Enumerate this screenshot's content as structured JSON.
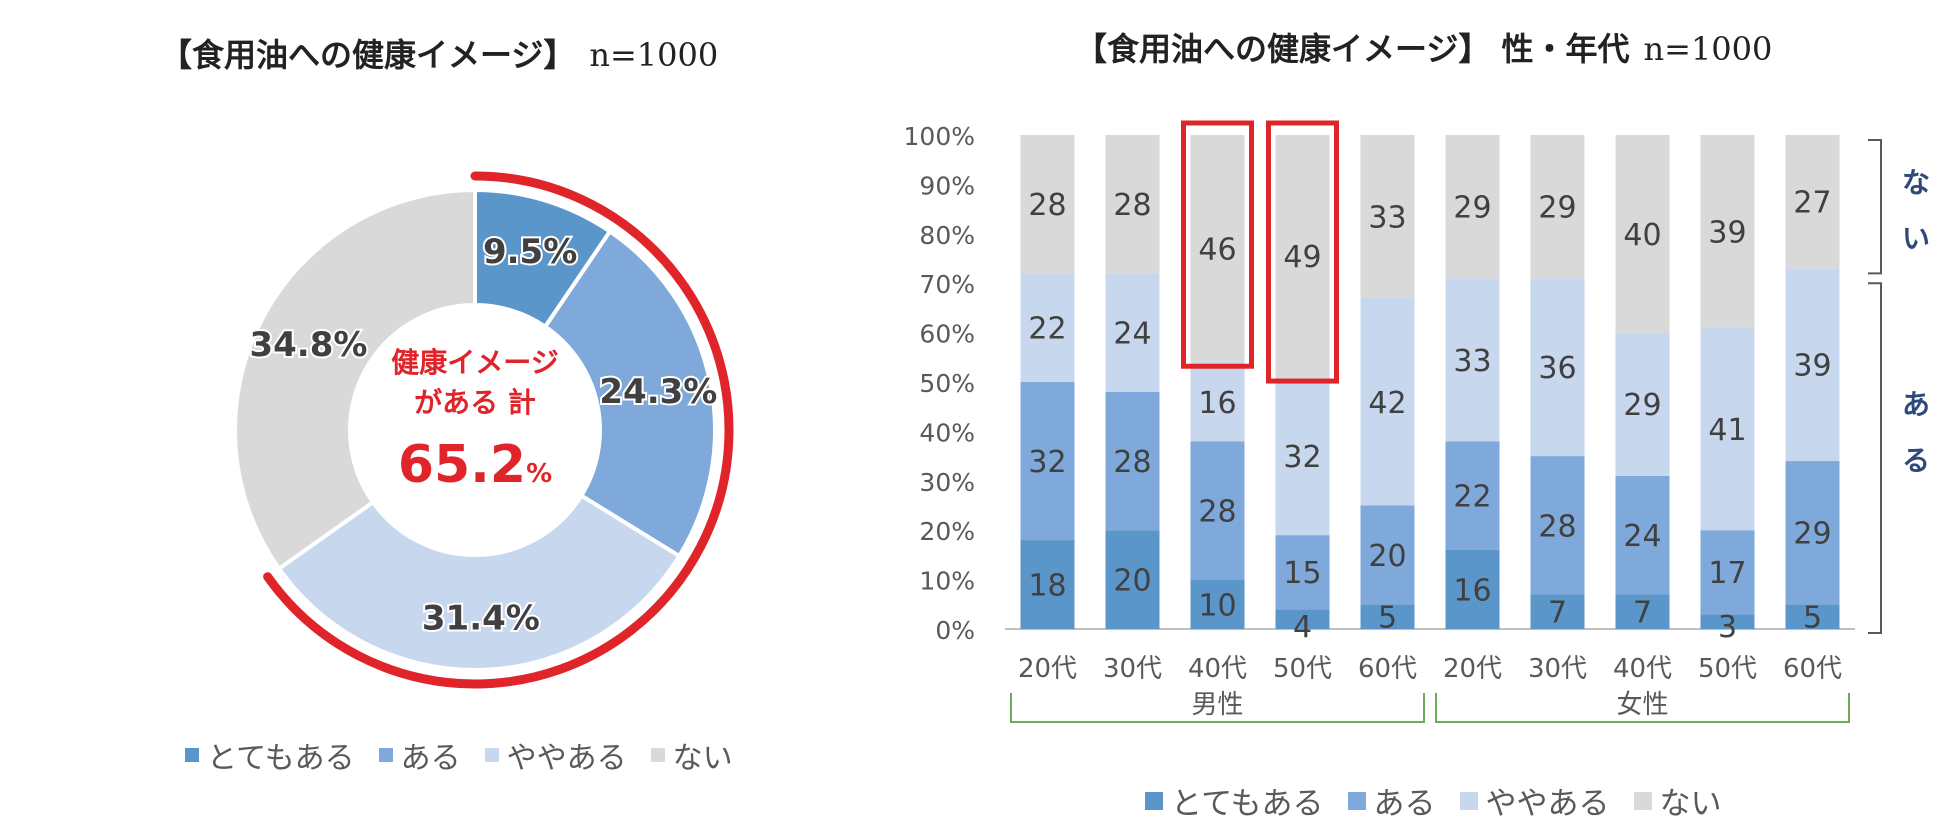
{
  "donut": {
    "title": "【食用油への健康イメージ】",
    "n_label": "n=1000",
    "center_line1": "健康イメージ",
    "center_line2": "がある 計",
    "center_value": "65.2",
    "center_unit": "%",
    "legend": [
      "とてもある",
      "ある",
      "ややある",
      "ない"
    ]
  },
  "bars": {
    "title": "【食用油への健康イメージ】 性・年代",
    "n_label": "n=1000",
    "group_labels": [
      "男性",
      "女性"
    ],
    "side_labels": [
      "ない",
      "ある"
    ],
    "legend": [
      "とてもある",
      "ある",
      "ややある",
      "ない"
    ]
  },
  "colors": {
    "very": "#5B96CB",
    "some": "#7EA9DA",
    "slight": "#C7D7EE",
    "none": "#D9D9D9",
    "highlight": "#E0252A",
    "center_text": "#E0252A",
    "side_text": "#2E4A7A",
    "bracket": "#6FAA5B"
  },
  "chart_data": [
    {
      "type": "pie",
      "categories": [
        "とてもある",
        "ある",
        "ややある",
        "ない"
      ],
      "values": [
        9.5,
        24.3,
        31.4,
        34.8
      ],
      "data_labels": [
        "9.5%",
        "24.3%",
        "31.4%",
        "34.8%"
      ]
    },
    {
      "type": "bar",
      "stacked": true,
      "categories": [
        "20代",
        "30代",
        "40代",
        "50代",
        "60代",
        "20代",
        "30代",
        "40代",
        "50代",
        "60代"
      ],
      "series": [
        {
          "name": "とてもある",
          "values": [
            18,
            20,
            10,
            4,
            5,
            16,
            7,
            7,
            3,
            5
          ]
        },
        {
          "name": "ある",
          "values": [
            32,
            28,
            28,
            15,
            20,
            22,
            28,
            24,
            17,
            29
          ]
        },
        {
          "name": "ややある",
          "values": [
            22,
            24,
            16,
            32,
            42,
            33,
            36,
            29,
            41,
            39
          ]
        },
        {
          "name": "ない",
          "values": [
            28,
            28,
            46,
            49,
            33,
            29,
            29,
            40,
            39,
            27
          ]
        }
      ],
      "y_ticks": [
        "0%",
        "10%",
        "20%",
        "30%",
        "40%",
        "50%",
        "60%",
        "70%",
        "80%",
        "90%",
        "100%"
      ],
      "ylim": [
        0,
        100
      ],
      "highlighted_categories": [
        2,
        3
      ],
      "legend_position": "bottom"
    }
  ]
}
